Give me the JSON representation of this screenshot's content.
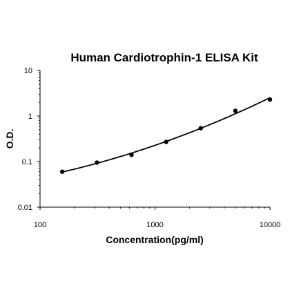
{
  "chart_data": {
    "type": "scatter",
    "title": "Human Cardiotrophin-1 ELISA Kit",
    "xlabel": "Concentration(pg/ml)",
    "ylabel": "O.D.",
    "xscale": "log",
    "yscale": "log",
    "xlim": [
      100,
      10000
    ],
    "ylim": [
      0.01,
      10
    ],
    "x_ticks": [
      "100",
      "1000",
      "10000"
    ],
    "y_ticks": [
      "0.01",
      "0.1",
      "1",
      "10"
    ],
    "grid": false,
    "legend": "none",
    "series": [
      {
        "x": [
          156,
          312,
          625,
          1250,
          2500,
          5000,
          10000
        ],
        "y": [
          0.06,
          0.095,
          0.14,
          0.27,
          0.54,
          1.3,
          2.3
        ]
      }
    ],
    "fit_curve": true
  }
}
